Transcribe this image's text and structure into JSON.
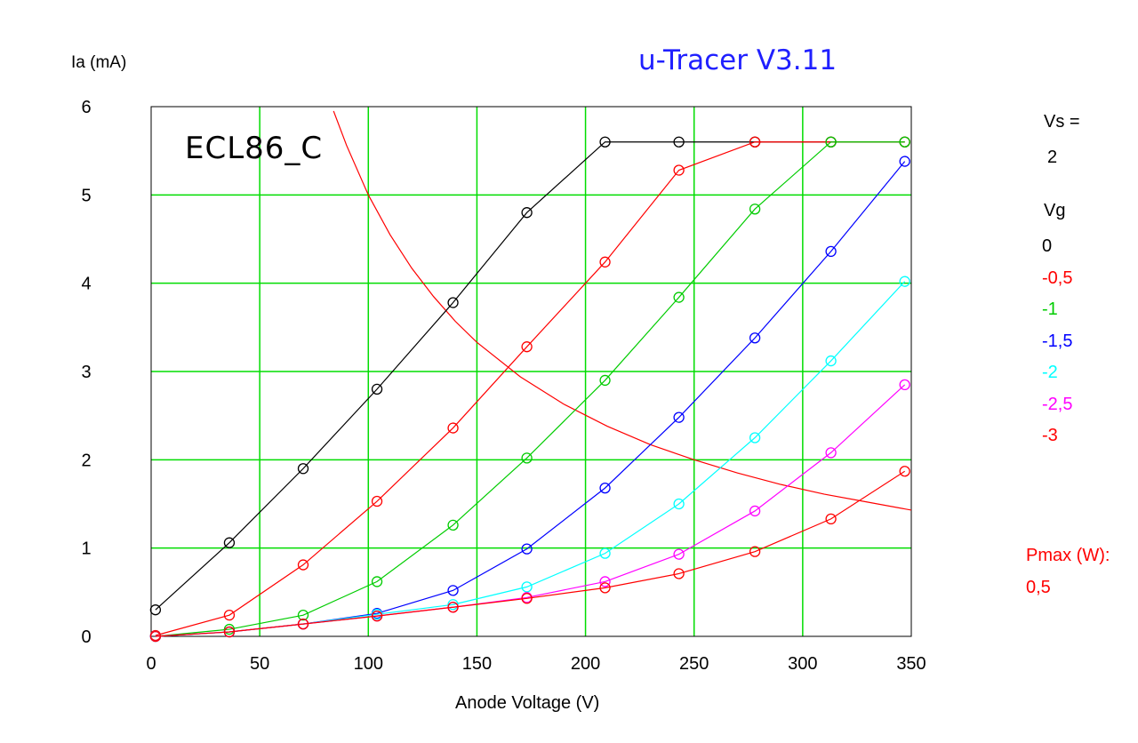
{
  "app_title": "u-Tracer V3.11",
  "tube_name": "ECL86_C",
  "side_panel": {
    "vs_label": "Vs =",
    "vs_value": "2",
    "vg_label": "Vg",
    "pmax_label": "Pmax (W):",
    "pmax_value": "0,5"
  },
  "chart_data": {
    "type": "line",
    "title": "",
    "xlabel": "Anode Voltage (V)",
    "ylabel": "Ia (mA)",
    "xlim": [
      0,
      350
    ],
    "ylim": [
      0,
      6
    ],
    "x_ticks": [
      "0",
      "50",
      "100",
      "150",
      "200",
      "250",
      "300",
      "350"
    ],
    "y_ticks": [
      "0",
      "1",
      "2",
      "3",
      "4",
      "5",
      "6"
    ],
    "grid": true,
    "grid_color": "#00dd00",
    "legend_position": "right",
    "x": [
      2,
      36,
      70,
      104,
      139,
      173,
      209,
      243,
      278,
      313,
      347
    ],
    "series": [
      {
        "name": "0",
        "color": "#000000",
        "values": [
          0.3,
          1.06,
          1.9,
          2.8,
          3.78,
          4.8,
          5.6,
          5.6,
          5.6,
          5.6,
          5.6
        ]
      },
      {
        "name": "-0,5",
        "color": "#ff0000",
        "values": [
          0.01,
          0.24,
          0.81,
          1.53,
          2.36,
          3.28,
          4.24,
          5.28,
          5.6,
          5.6,
          5.6
        ]
      },
      {
        "name": "-1",
        "color": "#00cc00",
        "values": [
          0.0,
          0.08,
          0.24,
          0.62,
          1.26,
          2.02,
          2.9,
          3.84,
          4.84,
          5.6,
          5.6
        ]
      },
      {
        "name": "-1,5",
        "color": "#0000ff",
        "values": [
          0.0,
          0.05,
          0.14,
          0.26,
          0.52,
          0.99,
          1.68,
          2.48,
          3.38,
          4.36,
          5.38
        ]
      },
      {
        "name": "-2",
        "color": "#00ffff",
        "values": [
          0.0,
          0.05,
          0.14,
          0.25,
          0.36,
          0.56,
          0.94,
          1.5,
          2.25,
          3.12,
          4.02
        ]
      },
      {
        "name": "-2,5",
        "color": "#ff00ff",
        "values": [
          0.0,
          0.05,
          0.14,
          0.23,
          0.33,
          0.44,
          0.62,
          0.93,
          1.42,
          2.08,
          2.85
        ]
      },
      {
        "name": "-3",
        "color": "#ff0000",
        "values": [
          0.0,
          0.05,
          0.14,
          0.23,
          0.33,
          0.43,
          0.55,
          0.71,
          0.96,
          1.33,
          1.87
        ]
      }
    ],
    "pmax_curve": {
      "color": "#ff0000",
      "power_w": 0.5,
      "x": [
        84,
        90,
        100,
        110,
        120,
        130,
        140,
        150,
        170,
        190,
        210,
        230,
        250,
        270,
        290,
        310,
        330,
        350
      ],
      "values": [
        5.95,
        5.56,
        5.0,
        4.55,
        4.17,
        3.85,
        3.57,
        3.33,
        2.94,
        2.63,
        2.38,
        2.17,
        2.0,
        1.85,
        1.72,
        1.61,
        1.52,
        1.43
      ]
    }
  }
}
